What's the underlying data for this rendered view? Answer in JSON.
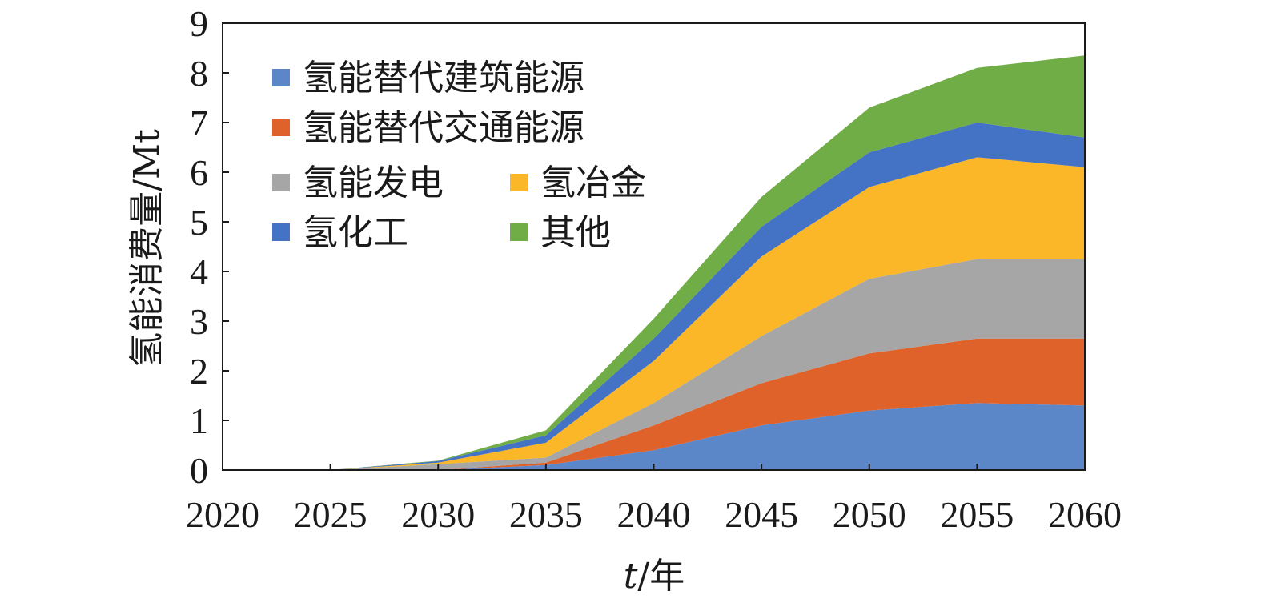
{
  "chart_data": {
    "type": "area",
    "stacked": true,
    "title": "",
    "xlabel_italic": "t",
    "xlabel_rest": "/年",
    "ylabel": "氢能消费量/Mt",
    "x": [
      2020,
      2025,
      2030,
      2035,
      2040,
      2045,
      2050,
      2055,
      2060
    ],
    "xlim": [
      2020,
      2060
    ],
    "ylim": [
      0,
      9
    ],
    "yticks": [
      0,
      1,
      2,
      3,
      4,
      5,
      6,
      7,
      8,
      9
    ],
    "grid": false,
    "legend_position": "top-left",
    "series": [
      {
        "name": "氢能替代建筑能源",
        "color": "#5b86c8",
        "values": [
          0,
          0,
          0.0,
          0.1,
          0.4,
          0.9,
          1.2,
          1.35,
          1.3
        ]
      },
      {
        "name": "氢能替代交通能源",
        "color": "#e0622b",
        "values": [
          0,
          0,
          0.0,
          0.05,
          0.5,
          0.85,
          1.15,
          1.3,
          1.35
        ]
      },
      {
        "name": "氢能发电",
        "color": "#a6a6a6",
        "values": [
          0,
          0,
          0.12,
          0.1,
          0.45,
          0.95,
          1.5,
          1.6,
          1.6
        ]
      },
      {
        "name": "氢冶金",
        "color": "#fbb727",
        "values": [
          0,
          0,
          0.03,
          0.3,
          0.85,
          1.6,
          1.85,
          2.05,
          1.85
        ]
      },
      {
        "name": "氢化工",
        "color": "#4472c4",
        "values": [
          0,
          0,
          0.03,
          0.15,
          0.45,
          0.6,
          0.7,
          0.7,
          0.6
        ]
      },
      {
        "name": "其他",
        "color": "#70ad47",
        "values": [
          0,
          0,
          0.01,
          0.1,
          0.4,
          0.6,
          0.9,
          1.1,
          1.65
        ]
      }
    ]
  }
}
